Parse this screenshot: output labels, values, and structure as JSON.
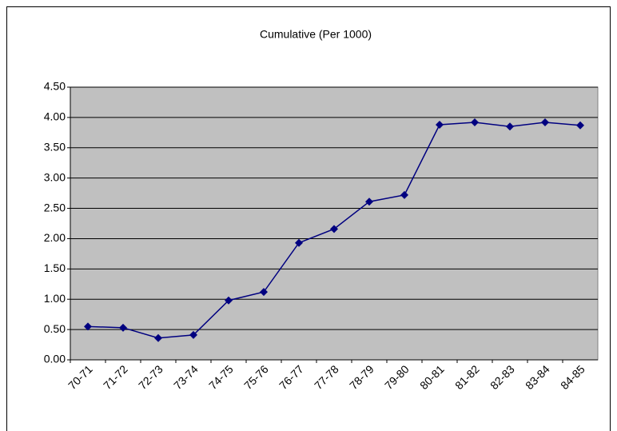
{
  "chart_data": {
    "type": "line",
    "title": "Cumulative (Per 1000)",
    "categories": [
      "70-71",
      "71-72",
      "72-73",
      "73-74",
      "74-75",
      "75-76",
      "76-77",
      "77-78",
      "78-79",
      "79-80",
      "80-81",
      "81-82",
      "82-83",
      "83-84",
      "84-85"
    ],
    "series": [
      {
        "name": "Cumulative (Per 1000)",
        "color": "#000080",
        "values": [
          0.55,
          0.53,
          0.36,
          0.41,
          0.98,
          1.12,
          1.93,
          2.16,
          2.61,
          2.72,
          3.88,
          3.92,
          3.85,
          3.92,
          3.87
        ]
      }
    ],
    "ylim": [
      0,
      4.5
    ],
    "yticks": [
      {
        "value": 0,
        "label": "0.00"
      },
      {
        "value": 0.5,
        "label": "0.50"
      },
      {
        "value": 1,
        "label": "1.00"
      },
      {
        "value": 1.5,
        "label": "1.50"
      },
      {
        "value": 2,
        "label": "2.00"
      },
      {
        "value": 2.5,
        "label": "2.50"
      },
      {
        "value": 3,
        "label": "3.00"
      },
      {
        "value": 3.5,
        "label": "3.50"
      },
      {
        "value": 4,
        "label": "4.00"
      },
      {
        "value": 4.5,
        "label": "4.50"
      }
    ],
    "grid": true,
    "plot_background": "#c0c0c0"
  }
}
